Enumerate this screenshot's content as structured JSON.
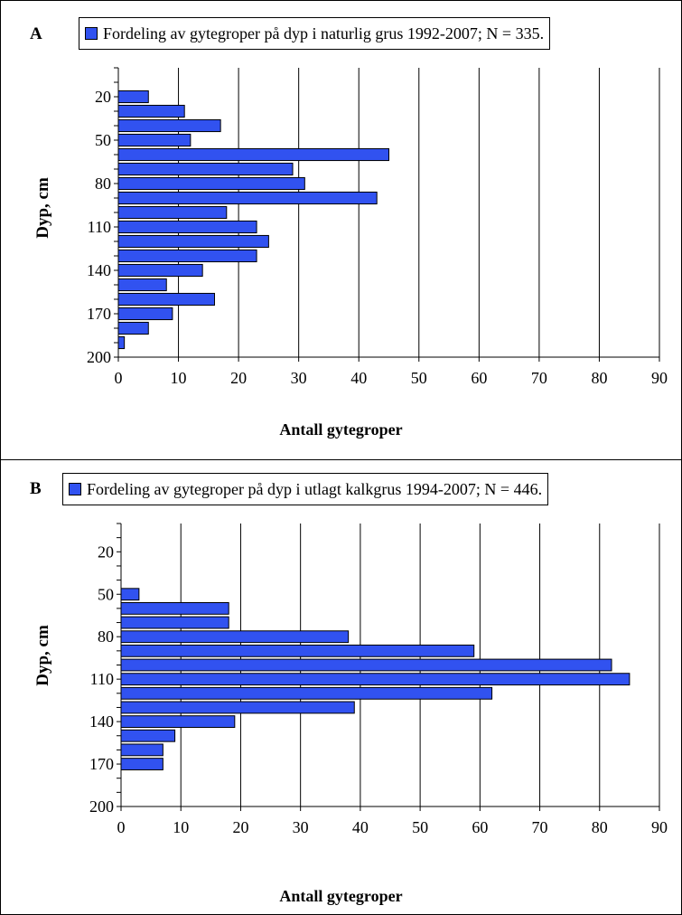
{
  "chart_data": [
    {
      "panel_label": "A",
      "type": "bar",
      "orientation": "horizontal",
      "legend": "Fordeling av gytegroper på dyp i naturlig grus 1992-2007; N = 335.",
      "ylabel": "Dyp, cm",
      "xlabel": "Antall gytegroper",
      "xlim": [
        0,
        90
      ],
      "xticks": [
        0,
        10,
        20,
        30,
        40,
        50,
        60,
        70,
        80,
        90
      ],
      "yticks": [
        20,
        50,
        80,
        110,
        140,
        170,
        200
      ],
      "depth_range": [
        0,
        200
      ],
      "grid": "vertical",
      "legend_placement": "top",
      "bar_color": "#3152f0",
      "depths": [
        20,
        30,
        40,
        50,
        60,
        70,
        80,
        90,
        100,
        110,
        120,
        130,
        140,
        150,
        160,
        170,
        180,
        190
      ],
      "values": [
        5,
        11,
        17,
        12,
        45,
        29,
        31,
        43,
        18,
        23,
        25,
        23,
        14,
        8,
        16,
        9,
        5,
        1
      ]
    },
    {
      "panel_label": "B",
      "type": "bar",
      "orientation": "horizontal",
      "legend": "Fordeling av gytegroper på dyp i utlagt kalkgrus 1994-2007; N = 446.",
      "ylabel": "Dyp, cm",
      "xlabel": "Antall gytegroper",
      "xlim": [
        0,
        90
      ],
      "xticks": [
        0,
        10,
        20,
        30,
        40,
        50,
        60,
        70,
        80,
        90
      ],
      "yticks": [
        20,
        50,
        80,
        110,
        140,
        170,
        200
      ],
      "depth_range": [
        0,
        200
      ],
      "grid": "vertical",
      "legend_placement": "top",
      "bar_color": "#3152f0",
      "depths": [
        50,
        60,
        70,
        80,
        90,
        100,
        110,
        120,
        130,
        140,
        150,
        160,
        170
      ],
      "values": [
        3,
        18,
        18,
        38,
        59,
        82,
        85,
        62,
        39,
        19,
        9,
        7,
        7
      ]
    }
  ]
}
